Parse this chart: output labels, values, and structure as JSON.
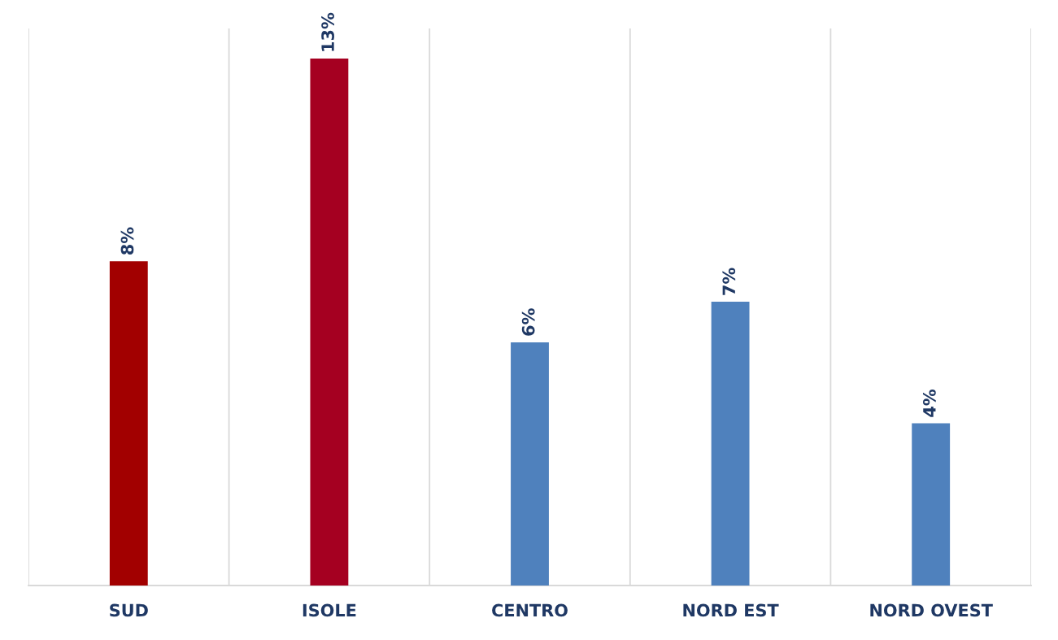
{
  "chart_data": {
    "type": "bar",
    "categories": [
      "SUD",
      "ISOLE",
      "CENTRO",
      "NORD EST",
      "NORD OVEST"
    ],
    "values": [
      8,
      13,
      6,
      7,
      4
    ],
    "value_labels": [
      "8%",
      "13%",
      "6%",
      "7%",
      "4%"
    ],
    "colors": [
      "#a20000",
      "#a50021",
      "#4f81bd",
      "#4f81bd",
      "#4f81bd"
    ],
    "grid": "x"
  }
}
